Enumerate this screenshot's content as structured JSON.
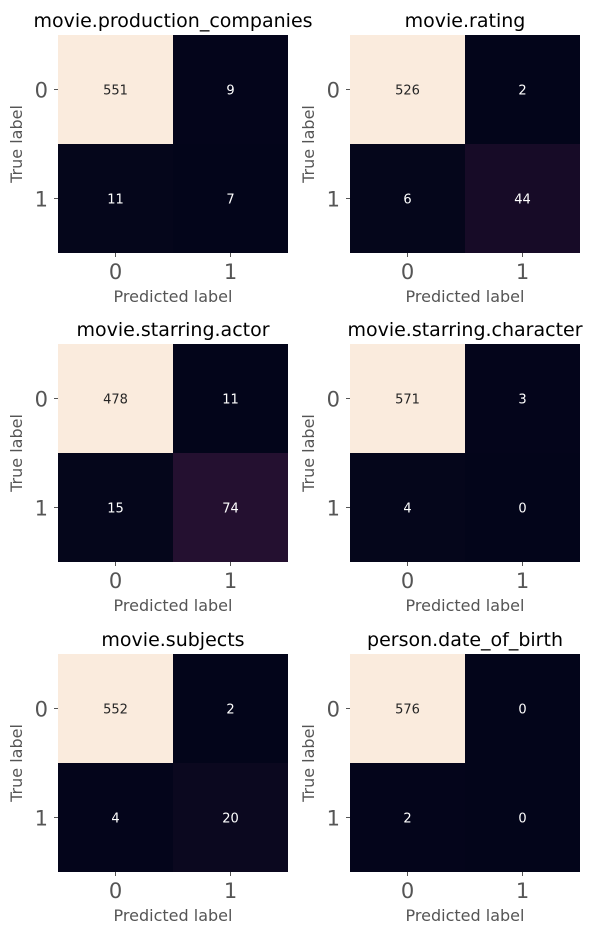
{
  "chart_data": [
    {
      "type": "heatmap",
      "title": "movie.production_companies",
      "xlabel": "Predicted label",
      "ylabel": "True label",
      "x_ticks": [
        "0",
        "1"
      ],
      "y_ticks": [
        "0",
        "1"
      ],
      "matrix": [
        [
          551,
          9
        ],
        [
          11,
          7
        ]
      ]
    },
    {
      "type": "heatmap",
      "title": "movie.rating",
      "xlabel": "Predicted label",
      "ylabel": "True label",
      "x_ticks": [
        "0",
        "1"
      ],
      "y_ticks": [
        "0",
        "1"
      ],
      "matrix": [
        [
          526,
          2
        ],
        [
          6,
          44
        ]
      ]
    },
    {
      "type": "heatmap",
      "title": "movie.starring.actor",
      "xlabel": "Predicted label",
      "ylabel": "True label",
      "x_ticks": [
        "0",
        "1"
      ],
      "y_ticks": [
        "0",
        "1"
      ],
      "matrix": [
        [
          478,
          11
        ],
        [
          15,
          74
        ]
      ]
    },
    {
      "type": "heatmap",
      "title": "movie.starring.character",
      "xlabel": "Predicted label",
      "ylabel": "True label",
      "x_ticks": [
        "0",
        "1"
      ],
      "y_ticks": [
        "0",
        "1"
      ],
      "matrix": [
        [
          571,
          3
        ],
        [
          4,
          0
        ]
      ]
    },
    {
      "type": "heatmap",
      "title": "movie.subjects",
      "xlabel": "Predicted label",
      "ylabel": "True label",
      "x_ticks": [
        "0",
        "1"
      ],
      "y_ticks": [
        "0",
        "1"
      ],
      "matrix": [
        [
          552,
          2
        ],
        [
          4,
          20
        ]
      ]
    },
    {
      "type": "heatmap",
      "title": "person.date_of_birth",
      "xlabel": "Predicted label",
      "ylabel": "True label",
      "x_ticks": [
        "0",
        "1"
      ],
      "y_ticks": [
        "0",
        "1"
      ],
      "matrix": [
        [
          576,
          0
        ],
        [
          2,
          0
        ]
      ]
    }
  ],
  "colors": {
    "low": "#03051a",
    "mid": "#4c1d4b",
    "high": "#faebdd",
    "text_on_dark": "#ffffff",
    "text_on_light": "#262626"
  }
}
